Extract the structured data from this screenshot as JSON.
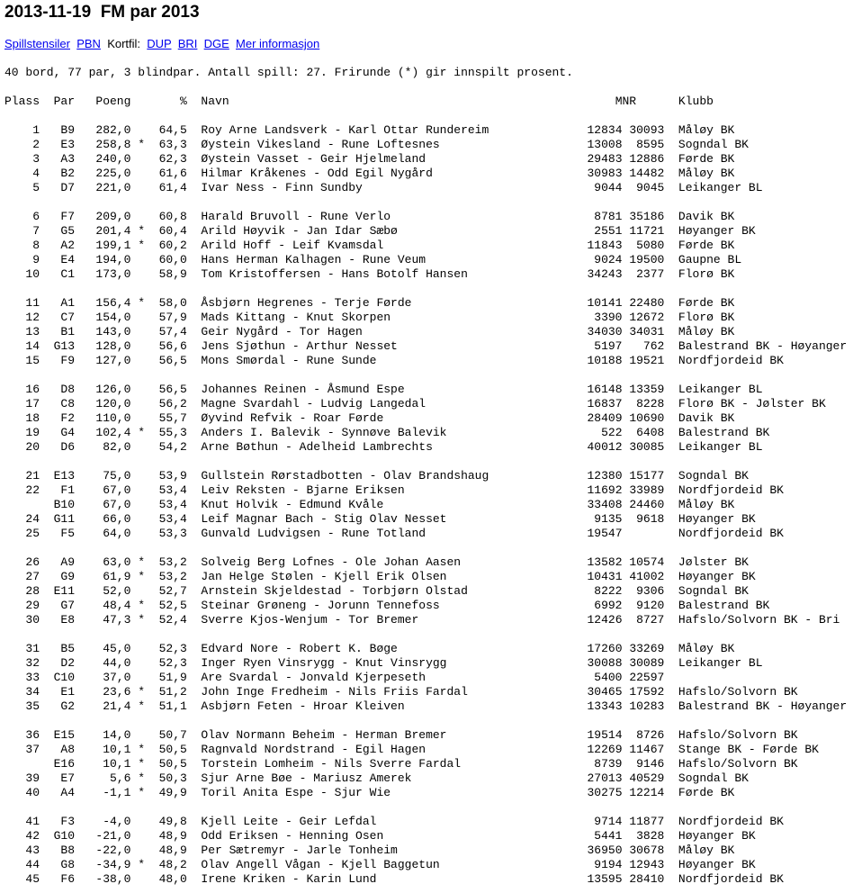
{
  "title": "2013-11-19  FM par 2013",
  "links": {
    "spillstensiler": "Spillstensiler",
    "pbn": "PBN",
    "kortfil_label": "Kortfil:",
    "dup": "DUP",
    "bri": "BRI",
    "dge": "DGE",
    "mer": "Mer informasjon"
  },
  "info": "40 bord, 77 par, 3 blindpar. Antall spill: 27. Frirunde (*) gir innspilt prosent.",
  "headers": {
    "plass": "Plass",
    "par": "Par",
    "poeng": "Poeng",
    "pct": "%",
    "navn": "Navn",
    "mnr": "MNR",
    "klubb": "Klubb"
  },
  "groups": [
    [
      {
        "plass": "1",
        "par": "B9",
        "poeng": "282,0",
        "star": "",
        "pct": "64,5",
        "name": "Roy Arne Landsverk - Karl Ottar Rundereim",
        "mnr1": "12834",
        "mnr2": "30093",
        "club": "Måløy BK"
      },
      {
        "plass": "2",
        "par": "E3",
        "poeng": "258,8",
        "star": "*",
        "pct": "63,3",
        "name": "Øystein Vikesland - Rune Loftesnes",
        "mnr1": "13008",
        "mnr2": "8595",
        "club": "Sogndal BK"
      },
      {
        "plass": "3",
        "par": "A3",
        "poeng": "240,0",
        "star": "",
        "pct": "62,3",
        "name": "Øystein Vasset - Geir Hjelmeland",
        "mnr1": "29483",
        "mnr2": "12886",
        "club": "Førde BK"
      },
      {
        "plass": "4",
        "par": "B2",
        "poeng": "225,0",
        "star": "",
        "pct": "61,6",
        "name": "Hilmar Kråkenes - Odd Egil Nygård",
        "mnr1": "30983",
        "mnr2": "14482",
        "club": "Måløy BK"
      },
      {
        "plass": "5",
        "par": "D7",
        "poeng": "221,0",
        "star": "",
        "pct": "61,4",
        "name": "Ivar Ness - Finn Sundby",
        "mnr1": "9044",
        "mnr2": "9045",
        "club": "Leikanger BL"
      }
    ],
    [
      {
        "plass": "6",
        "par": "F7",
        "poeng": "209,0",
        "star": "",
        "pct": "60,8",
        "name": "Harald Bruvoll - Rune Verlo",
        "mnr1": "8781",
        "mnr2": "35186",
        "club": "Davik BK"
      },
      {
        "plass": "7",
        "par": "G5",
        "poeng": "201,4",
        "star": "*",
        "pct": "60,4",
        "name": "Arild Høyvik - Jan Idar Sæbø",
        "mnr1": "2551",
        "mnr2": "11721",
        "club": "Høyanger BK"
      },
      {
        "plass": "8",
        "par": "A2",
        "poeng": "199,1",
        "star": "*",
        "pct": "60,2",
        "name": "Arild Hoff - Leif Kvamsdal",
        "mnr1": "11843",
        "mnr2": "5080",
        "club": "Førde BK"
      },
      {
        "plass": "9",
        "par": "E4",
        "poeng": "194,0",
        "star": "",
        "pct": "60,0",
        "name": "Hans Herman Kalhagen - Rune Veum",
        "mnr1": "9024",
        "mnr2": "19500",
        "club": "Gaupne BL"
      },
      {
        "plass": "10",
        "par": "C1",
        "poeng": "173,0",
        "star": "",
        "pct": "58,9",
        "name": "Tom Kristoffersen - Hans Botolf Hansen",
        "mnr1": "34243",
        "mnr2": "2377",
        "club": "Florø BK"
      }
    ],
    [
      {
        "plass": "11",
        "par": "A1",
        "poeng": "156,4",
        "star": "*",
        "pct": "58,0",
        "name": "Åsbjørn Hegrenes - Terje Førde",
        "mnr1": "10141",
        "mnr2": "22480",
        "club": "Førde BK"
      },
      {
        "plass": "12",
        "par": "C7",
        "poeng": "154,0",
        "star": "",
        "pct": "57,9",
        "name": "Mads Kittang - Knut Skorpen",
        "mnr1": "3390",
        "mnr2": "12672",
        "club": "Florø BK"
      },
      {
        "plass": "13",
        "par": "B1",
        "poeng": "143,0",
        "star": "",
        "pct": "57,4",
        "name": "Geir Nygård - Tor Hagen",
        "mnr1": "34030",
        "mnr2": "34031",
        "club": "Måløy BK"
      },
      {
        "plass": "14",
        "par": "G13",
        "poeng": "128,0",
        "star": "",
        "pct": "56,6",
        "name": "Jens Sjøthun - Arthur Nesset",
        "mnr1": "5197",
        "mnr2": "762",
        "club": "Balestrand BK - Høyanger BK"
      },
      {
        "plass": "15",
        "par": "F9",
        "poeng": "127,0",
        "star": "",
        "pct": "56,5",
        "name": "Mons Smørdal - Rune Sunde",
        "mnr1": "10188",
        "mnr2": "19521",
        "club": "Nordfjordeid BK"
      }
    ],
    [
      {
        "plass": "16",
        "par": "D8",
        "poeng": "126,0",
        "star": "",
        "pct": "56,5",
        "name": "Johannes Reinen - Åsmund Espe",
        "mnr1": "16148",
        "mnr2": "13359",
        "club": "Leikanger BL"
      },
      {
        "plass": "17",
        "par": "C8",
        "poeng": "120,0",
        "star": "",
        "pct": "56,2",
        "name": "Magne Svardahl - Ludvig Langedal",
        "mnr1": "16837",
        "mnr2": "8228",
        "club": "Florø BK - Jølster BK"
      },
      {
        "plass": "18",
        "par": "F2",
        "poeng": "110,0",
        "star": "",
        "pct": "55,7",
        "name": "Øyvind Refvik - Roar Førde",
        "mnr1": "28409",
        "mnr2": "10690",
        "club": "Davik BK"
      },
      {
        "plass": "19",
        "par": "G4",
        "poeng": "102,4",
        "star": "*",
        "pct": "55,3",
        "name": "Anders I. Balevik - Synnøve Balevik",
        "mnr1": "522",
        "mnr2": "6408",
        "club": "Balestrand BK"
      },
      {
        "plass": "20",
        "par": "D6",
        "poeng": "82,0",
        "star": "",
        "pct": "54,2",
        "name": "Arne Bøthun - Adelheid Lambrechts",
        "mnr1": "40012",
        "mnr2": "30085",
        "club": "Leikanger BL"
      }
    ],
    [
      {
        "plass": "21",
        "par": "E13",
        "poeng": "75,0",
        "star": "",
        "pct": "53,9",
        "name": "Gullstein Rørstadbotten - Olav Brandshaug",
        "mnr1": "12380",
        "mnr2": "15177",
        "club": "Sogndal BK"
      },
      {
        "plass": "22",
        "par": "F1",
        "poeng": "67,0",
        "star": "",
        "pct": "53,4",
        "name": "Leiv Reksten - Bjarne Eriksen",
        "mnr1": "11692",
        "mnr2": "33989",
        "club": "Nordfjordeid BK"
      },
      {
        "plass": "",
        "par": "B10",
        "poeng": "67,0",
        "star": "",
        "pct": "53,4",
        "name": "Knut Holvik - Edmund Kvåle",
        "mnr1": "33408",
        "mnr2": "24460",
        "club": "Måløy BK"
      },
      {
        "plass": "24",
        "par": "G11",
        "poeng": "66,0",
        "star": "",
        "pct": "53,4",
        "name": "Leif Magnar Bach - Stig Olav Nesset",
        "mnr1": "9135",
        "mnr2": "9618",
        "club": "Høyanger BK"
      },
      {
        "plass": "25",
        "par": "F5",
        "poeng": "64,0",
        "star": "",
        "pct": "53,3",
        "name": "Gunvald Ludvigsen - Rune Totland",
        "mnr1": "19547",
        "mnr2": "",
        "club": "Nordfjordeid BK"
      }
    ],
    [
      {
        "plass": "26",
        "par": "A9",
        "poeng": "63,0",
        "star": "*",
        "pct": "53,2",
        "name": "Solveig Berg Lofnes - Ole Johan Aasen",
        "mnr1": "13582",
        "mnr2": "10574",
        "club": "Jølster BK"
      },
      {
        "plass": "27",
        "par": "G9",
        "poeng": "61,9",
        "star": "*",
        "pct": "53,2",
        "name": "Jan Helge Stølen - Kjell Erik Olsen",
        "mnr1": "10431",
        "mnr2": "41002",
        "club": "Høyanger BK"
      },
      {
        "plass": "28",
        "par": "E11",
        "poeng": "52,0",
        "star": "",
        "pct": "52,7",
        "name": "Arnstein Skjeldestad - Torbjørn Olstad",
        "mnr1": "8222",
        "mnr2": "9306",
        "club": "Sogndal BK"
      },
      {
        "plass": "29",
        "par": "G7",
        "poeng": "48,4",
        "star": "*",
        "pct": "52,5",
        "name": "Steinar Grøneng - Jorunn Tennefoss",
        "mnr1": "6992",
        "mnr2": "9120",
        "club": "Balestrand BK"
      },
      {
        "plass": "30",
        "par": "E8",
        "poeng": "47,3",
        "star": "*",
        "pct": "52,4",
        "name": "Sverre Kjos-Wenjum - Tor Bremer",
        "mnr1": "12426",
        "mnr2": "8727",
        "club": "Hafslo/Solvorn BK - Bri"
      }
    ],
    [
      {
        "plass": "31",
        "par": "B5",
        "poeng": "45,0",
        "star": "",
        "pct": "52,3",
        "name": "Edvard Nore - Robert K. Bøge",
        "mnr1": "17260",
        "mnr2": "33269",
        "club": "Måløy BK"
      },
      {
        "plass": "32",
        "par": "D2",
        "poeng": "44,0",
        "star": "",
        "pct": "52,3",
        "name": "Inger Ryen Vinsrygg - Knut Vinsrygg",
        "mnr1": "30088",
        "mnr2": "30089",
        "club": "Leikanger BL"
      },
      {
        "plass": "33",
        "par": "C10",
        "poeng": "37,0",
        "star": "",
        "pct": "51,9",
        "name": "Are Svardal - Jonvald Kjerpeseth",
        "mnr1": "5400",
        "mnr2": "22597",
        "club": ""
      },
      {
        "plass": "34",
        "par": "E1",
        "poeng": "23,6",
        "star": "*",
        "pct": "51,2",
        "name": "John Inge Fredheim - Nils Friis Fardal",
        "mnr1": "30465",
        "mnr2": "17592",
        "club": "Hafslo/Solvorn BK"
      },
      {
        "plass": "35",
        "par": "G2",
        "poeng": "21,4",
        "star": "*",
        "pct": "51,1",
        "name": "Asbjørn Feten - Hroar Kleiven",
        "mnr1": "13343",
        "mnr2": "10283",
        "club": "Balestrand BK - Høyanger BK"
      }
    ],
    [
      {
        "plass": "36",
        "par": "E15",
        "poeng": "14,0",
        "star": "",
        "pct": "50,7",
        "name": "Olav Normann Beheim - Herman Bremer",
        "mnr1": "19514",
        "mnr2": "8726",
        "club": "Hafslo/Solvorn BK"
      },
      {
        "plass": "37",
        "par": "A8",
        "poeng": "10,1",
        "star": "*",
        "pct": "50,5",
        "name": "Ragnvald Nordstrand - Egil Hagen",
        "mnr1": "12269",
        "mnr2": "11467",
        "club": "Stange BK - Førde BK"
      },
      {
        "plass": "",
        "par": "E16",
        "poeng": "10,1",
        "star": "*",
        "pct": "50,5",
        "name": "Torstein Lomheim - Nils Sverre Fardal",
        "mnr1": "8739",
        "mnr2": "9146",
        "club": "Hafslo/Solvorn BK"
      },
      {
        "plass": "39",
        "par": "E7",
        "poeng": "5,6",
        "star": "*",
        "pct": "50,3",
        "name": "Sjur Arne Bøe - Mariusz Amerek",
        "mnr1": "27013",
        "mnr2": "40529",
        "club": "Sogndal BK"
      },
      {
        "plass": "40",
        "par": "A4",
        "poeng": "-1,1",
        "star": "*",
        "pct": "49,9",
        "name": "Toril Anita Espe - Sjur Wie",
        "mnr1": "30275",
        "mnr2": "12214",
        "club": "Førde BK"
      }
    ],
    [
      {
        "plass": "41",
        "par": "F3",
        "poeng": "-4,0",
        "star": "",
        "pct": "49,8",
        "name": "Kjell Leite - Geir Lefdal",
        "mnr1": "9714",
        "mnr2": "11877",
        "club": "Nordfjordeid BK"
      },
      {
        "plass": "42",
        "par": "G10",
        "poeng": "-21,0",
        "star": "",
        "pct": "48,9",
        "name": "Odd Eriksen - Henning Osen",
        "mnr1": "5441",
        "mnr2": "3828",
        "club": "Høyanger BK"
      },
      {
        "plass": "43",
        "par": "B8",
        "poeng": "-22,0",
        "star": "",
        "pct": "48,9",
        "name": "Per Sætremyr - Jarle Tonheim",
        "mnr1": "36950",
        "mnr2": "30678",
        "club": "Måløy BK"
      },
      {
        "plass": "44",
        "par": "G8",
        "poeng": "-34,9",
        "star": "*",
        "pct": "48,2",
        "name": "Olav Angell Vågan - Kjell Baggetun",
        "mnr1": "9194",
        "mnr2": "12943",
        "club": "Høyanger BK"
      },
      {
        "plass": "45",
        "par": "F6",
        "poeng": "-38,0",
        "star": "",
        "pct": "48,0",
        "name": "Irene Kriken - Karin Lund",
        "mnr1": "13595",
        "mnr2": "28410",
        "club": "Nordfjordeid BK"
      }
    ]
  ]
}
